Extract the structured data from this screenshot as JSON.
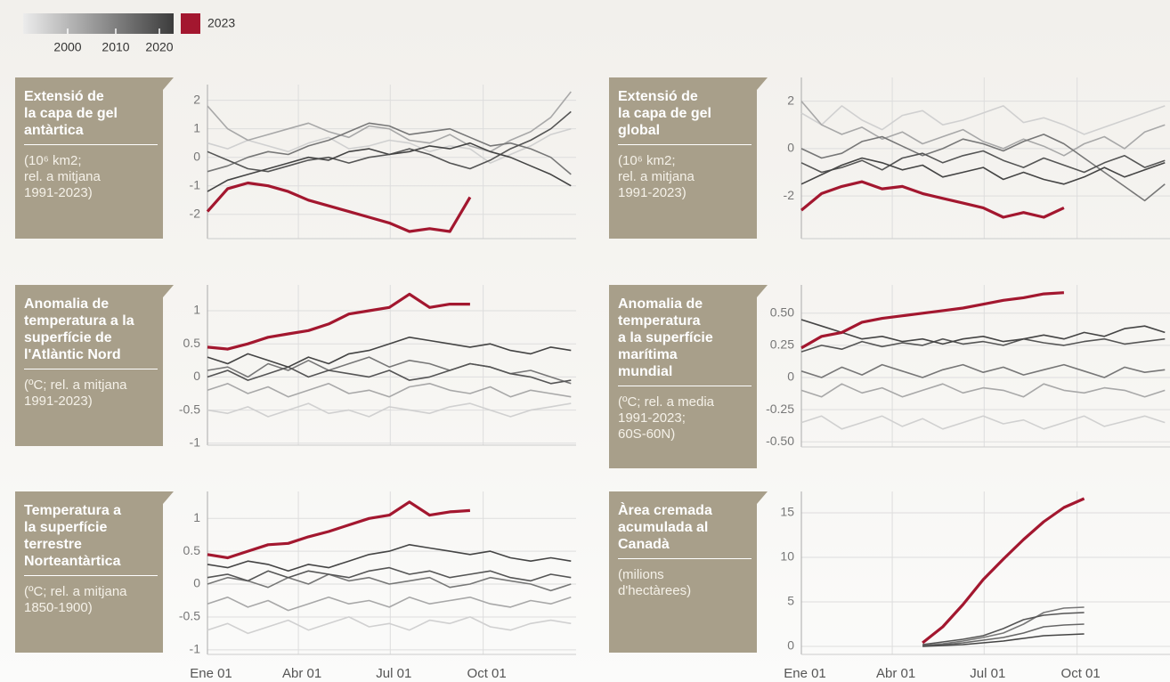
{
  "legend": {
    "ticks": [
      2000,
      2010,
      2020
    ],
    "label": "2023",
    "color": "#a3172f"
  },
  "chart_data": [
    {
      "type": "line",
      "title": "Extensió de\nla capa de gel\nantàrtica",
      "subtitle": "(10⁶ km2;\nrel. a mitjana\n1991-2023)",
      "x": [
        0,
        20,
        40,
        60,
        80,
        100,
        120,
        140,
        160,
        180,
        200,
        220,
        240,
        260,
        280,
        300,
        320,
        340,
        360
      ],
      "xlim": [
        0,
        365
      ],
      "xticks": [
        0,
        90,
        181,
        273
      ],
      "ylim": [
        -2.85,
        2.55
      ],
      "yticks": [
        2,
        1,
        0,
        -1,
        -2
      ],
      "grid": true,
      "series": [
        {
          "color": "#d0d0d0",
          "values": [
            0.5,
            0.3,
            0.6,
            0.4,
            0.2,
            0.5,
            0.7,
            0.3,
            0.4,
            0.6,
            0.5,
            0.2,
            0.4,
            0.3,
            -0.2,
            0.1,
            0.4,
            0.8,
            1.0
          ]
        },
        {
          "color": "#a8a8a8",
          "values": [
            1.8,
            1.0,
            0.6,
            0.8,
            1.0,
            1.2,
            0.9,
            0.7,
            1.1,
            1.0,
            0.6,
            0.5,
            0.8,
            0.4,
            0.2,
            0.6,
            0.9,
            1.4,
            2.3
          ]
        },
        {
          "color": "#777777",
          "values": [
            -0.5,
            -0.3,
            0.0,
            0.2,
            0.1,
            0.4,
            0.6,
            0.9,
            1.2,
            1.1,
            0.8,
            0.9,
            1.0,
            0.7,
            0.4,
            0.5,
            0.3,
            0.0,
            -0.6
          ]
        },
        {
          "color": "#555555",
          "values": [
            0.2,
            -0.1,
            -0.4,
            -0.5,
            -0.3,
            -0.1,
            0.0,
            -0.2,
            0.0,
            0.1,
            0.3,
            0.1,
            -0.2,
            -0.4,
            -0.1,
            0.3,
            0.6,
            1.0,
            1.6
          ]
        },
        {
          "color": "#444444",
          "values": [
            -1.2,
            -0.8,
            -0.6,
            -0.4,
            -0.2,
            0.0,
            -0.1,
            0.2,
            0.3,
            0.1,
            0.2,
            0.4,
            0.3,
            0.5,
            0.2,
            0.0,
            -0.3,
            -0.6,
            -1.0
          ]
        },
        {
          "color": "#a3172f",
          "values": [
            -1.9,
            -1.1,
            -0.9,
            -1.0,
            -1.2,
            -1.5,
            -1.7,
            -1.9,
            -2.1,
            -2.3,
            -2.6,
            -2.5,
            -2.6,
            -1.4,
            null,
            null,
            null,
            null,
            null
          ]
        }
      ]
    },
    {
      "type": "line",
      "title": "Extensió de\nla capa de gel\nglobal",
      "subtitle": "(10⁶ km2;\nrel. a mitjana\n1991-2023)",
      "x": [
        0,
        20,
        40,
        60,
        80,
        100,
        120,
        140,
        160,
        180,
        200,
        220,
        240,
        260,
        280,
        300,
        320,
        340,
        360
      ],
      "xlim": [
        0,
        365
      ],
      "xticks": [
        0,
        90,
        181,
        273
      ],
      "ylim": [
        -3.8,
        3.0
      ],
      "yticks": [
        2,
        0,
        -2
      ],
      "grid": true,
      "series": [
        {
          "color": "#d0d0d0",
          "values": [
            1.5,
            1.0,
            1.8,
            1.2,
            0.8,
            1.4,
            1.6,
            1.0,
            1.2,
            1.5,
            1.8,
            1.1,
            1.3,
            1.0,
            0.6,
            0.9,
            1.2,
            1.5,
            1.8
          ]
        },
        {
          "color": "#a8a8a8",
          "values": [
            2.0,
            1.0,
            0.6,
            0.9,
            0.4,
            0.7,
            0.2,
            0.5,
            0.8,
            0.3,
            0.0,
            0.4,
            0.1,
            -0.3,
            0.2,
            0.5,
            0.0,
            0.7,
            1.0
          ]
        },
        {
          "color": "#777777",
          "values": [
            0.0,
            -0.4,
            -0.2,
            0.3,
            0.5,
            0.1,
            -0.3,
            0.0,
            0.4,
            0.2,
            -0.1,
            0.3,
            0.6,
            0.2,
            -0.4,
            -1.0,
            -1.6,
            -2.2,
            -1.5
          ]
        },
        {
          "color": "#555555",
          "values": [
            -0.6,
            -1.0,
            -0.8,
            -0.5,
            -0.9,
            -0.4,
            -0.2,
            -0.6,
            -0.3,
            -0.1,
            -0.5,
            -0.8,
            -0.4,
            -0.7,
            -1.0,
            -0.6,
            -0.3,
            -0.8,
            -0.5
          ]
        },
        {
          "color": "#444444",
          "values": [
            -1.5,
            -1.1,
            -0.7,
            -0.4,
            -0.6,
            -0.9,
            -0.7,
            -1.2,
            -1.0,
            -0.8,
            -1.3,
            -1.0,
            -1.3,
            -1.5,
            -1.2,
            -0.8,
            -1.2,
            -0.9,
            -0.6
          ]
        },
        {
          "color": "#a3172f",
          "values": [
            -2.6,
            -1.9,
            -1.6,
            -1.4,
            -1.7,
            -1.6,
            -1.9,
            -2.1,
            -2.3,
            -2.5,
            -2.9,
            -2.7,
            -2.9,
            -2.5,
            null,
            null,
            null,
            null,
            null
          ]
        }
      ]
    },
    {
      "type": "line",
      "title": "Anomalia de\ntemperatura a la\nsuperfície de\nl'Atlàntic Nord",
      "subtitle": "(ºC; rel. a mitjana\n1991-2023)",
      "x": [
        0,
        20,
        40,
        60,
        80,
        100,
        120,
        140,
        160,
        180,
        200,
        220,
        240,
        260,
        280,
        300,
        320,
        340,
        360
      ],
      "xlim": [
        0,
        365
      ],
      "xticks": [
        0,
        90,
        181,
        273
      ],
      "ylim": [
        -1.03,
        1.39
      ],
      "yticks": [
        1,
        0.5,
        0,
        -0.5,
        -1
      ],
      "grid": true,
      "series": [
        {
          "color": "#d0d0d0",
          "values": [
            -0.5,
            -0.55,
            -0.45,
            -0.6,
            -0.5,
            -0.4,
            -0.55,
            -0.5,
            -0.6,
            -0.45,
            -0.5,
            -0.55,
            -0.45,
            -0.4,
            -0.5,
            -0.6,
            -0.5,
            -0.45,
            -0.4
          ]
        },
        {
          "color": "#a8a8a8",
          "values": [
            -0.2,
            -0.1,
            -0.25,
            -0.15,
            -0.3,
            -0.2,
            -0.1,
            -0.25,
            -0.2,
            -0.3,
            -0.15,
            -0.1,
            -0.2,
            -0.25,
            -0.15,
            -0.3,
            -0.2,
            -0.25,
            -0.3
          ]
        },
        {
          "color": "#777777",
          "values": [
            0.1,
            0.15,
            0.0,
            0.2,
            0.1,
            0.25,
            0.1,
            0.2,
            0.3,
            0.15,
            0.25,
            0.2,
            0.1,
            0.2,
            0.15,
            0.05,
            0.1,
            0.0,
            -0.1
          ]
        },
        {
          "color": "#555555",
          "values": [
            0.0,
            0.1,
            -0.05,
            0.05,
            0.15,
            0.0,
            0.1,
            0.05,
            0.0,
            0.1,
            -0.05,
            0.0,
            0.1,
            0.2,
            0.15,
            0.05,
            0.0,
            -0.1,
            -0.05
          ]
        },
        {
          "color": "#444444",
          "values": [
            0.3,
            0.2,
            0.35,
            0.25,
            0.15,
            0.3,
            0.2,
            0.35,
            0.4,
            0.5,
            0.6,
            0.55,
            0.5,
            0.45,
            0.5,
            0.4,
            0.35,
            0.45,
            0.4
          ]
        },
        {
          "color": "#a3172f",
          "values": [
            0.45,
            0.42,
            0.5,
            0.6,
            0.65,
            0.7,
            0.8,
            0.95,
            1.0,
            1.05,
            1.25,
            1.05,
            1.1,
            1.1,
            null,
            null,
            null,
            null,
            null
          ]
        }
      ]
    },
    {
      "type": "line",
      "title": "Anomalia de\ntemperatura\na la superfície\nmarítima\nmundial",
      "subtitle": "(ºC; rel. a media\n1991-2023;\n60S-60N)",
      "x": [
        0,
        20,
        40,
        60,
        80,
        100,
        120,
        140,
        160,
        180,
        200,
        220,
        240,
        260,
        280,
        300,
        320,
        340,
        360
      ],
      "xlim": [
        0,
        365
      ],
      "xticks": [
        0,
        90,
        181,
        273
      ],
      "ylim": [
        -0.54,
        0.72
      ],
      "yticks": [
        {
          "value": 0.5,
          "label": "0.50"
        },
        {
          "value": 0.25,
          "label": "0.25"
        },
        0,
        {
          "value": -0.25,
          "label": "-0.25"
        },
        {
          "value": -0.5,
          "label": "-0.50"
        }
      ],
      "grid": true,
      "series": [
        {
          "color": "#d0d0d0",
          "values": [
            -0.35,
            -0.3,
            -0.4,
            -0.35,
            -0.3,
            -0.38,
            -0.32,
            -0.4,
            -0.35,
            -0.3,
            -0.36,
            -0.33,
            -0.4,
            -0.35,
            -0.3,
            -0.38,
            -0.34,
            -0.3,
            -0.35
          ]
        },
        {
          "color": "#a8a8a8",
          "values": [
            -0.1,
            -0.15,
            -0.05,
            -0.12,
            -0.08,
            -0.15,
            -0.1,
            -0.05,
            -0.12,
            -0.08,
            -0.1,
            -0.15,
            -0.05,
            -0.1,
            -0.12,
            -0.08,
            -0.1,
            -0.15,
            -0.1
          ]
        },
        {
          "color": "#777777",
          "values": [
            0.05,
            0.0,
            0.08,
            0.02,
            0.1,
            0.05,
            0.0,
            0.06,
            0.1,
            0.04,
            0.08,
            0.02,
            0.06,
            0.1,
            0.05,
            0.0,
            0.08,
            0.04,
            0.06
          ]
        },
        {
          "color": "#555555",
          "values": [
            0.2,
            0.25,
            0.22,
            0.28,
            0.24,
            0.27,
            0.25,
            0.3,
            0.26,
            0.28,
            0.25,
            0.3,
            0.27,
            0.25,
            0.28,
            0.3,
            0.26,
            0.28,
            0.3
          ]
        },
        {
          "color": "#444444",
          "values": [
            0.45,
            0.4,
            0.35,
            0.3,
            0.32,
            0.28,
            0.3,
            0.26,
            0.3,
            0.32,
            0.28,
            0.3,
            0.33,
            0.3,
            0.35,
            0.32,
            0.38,
            0.4,
            0.35
          ]
        },
        {
          "color": "#a3172f",
          "values": [
            0.23,
            0.32,
            0.35,
            0.43,
            0.46,
            0.48,
            0.5,
            0.52,
            0.54,
            0.57,
            0.6,
            0.62,
            0.65,
            0.66,
            null,
            null,
            null,
            null,
            null
          ]
        }
      ]
    },
    {
      "type": "line",
      "title": "Temperatura a\nla superfície\nterrestre\nNorteantàrtica",
      "subtitle": "(ºC; rel. a mitjana\n1850-1900)",
      "x": [
        0,
        20,
        40,
        60,
        80,
        100,
        120,
        140,
        160,
        180,
        200,
        220,
        240,
        260,
        280,
        300,
        320,
        340,
        360
      ],
      "xlim": [
        0,
        365
      ],
      "xticks": [
        {
          "value": 0,
          "label": "Ene 01"
        },
        {
          "value": 90,
          "label": "Abr 01"
        },
        {
          "value": 181,
          "label": "Jul 01"
        },
        {
          "value": 273,
          "label": "Oct 01"
        }
      ],
      "ylim": [
        -1.07,
        1.41
      ],
      "yticks": [
        1,
        0.5,
        0,
        -0.5,
        -1
      ],
      "grid": true,
      "series": [
        {
          "color": "#d0d0d0",
          "values": [
            -0.7,
            -0.6,
            -0.75,
            -0.65,
            -0.55,
            -0.7,
            -0.6,
            -0.5,
            -0.65,
            -0.6,
            -0.7,
            -0.55,
            -0.6,
            -0.5,
            -0.65,
            -0.7,
            -0.6,
            -0.55,
            -0.6
          ]
        },
        {
          "color": "#a8a8a8",
          "values": [
            -0.3,
            -0.2,
            -0.35,
            -0.25,
            -0.4,
            -0.3,
            -0.2,
            -0.3,
            -0.25,
            -0.35,
            -0.2,
            -0.3,
            -0.25,
            -0.2,
            -0.3,
            -0.35,
            -0.25,
            -0.3,
            -0.2
          ]
        },
        {
          "color": "#777777",
          "values": [
            0.0,
            0.1,
            0.05,
            -0.05,
            0.1,
            0.0,
            0.15,
            0.05,
            0.1,
            0.0,
            0.05,
            0.1,
            -0.05,
            0.0,
            0.1,
            0.05,
            0.0,
            -0.1,
            0.0
          ]
        },
        {
          "color": "#555555",
          "values": [
            0.1,
            0.15,
            0.05,
            0.2,
            0.1,
            0.2,
            0.15,
            0.1,
            0.2,
            0.25,
            0.15,
            0.2,
            0.1,
            0.15,
            0.2,
            0.1,
            0.05,
            0.15,
            0.1
          ]
        },
        {
          "color": "#444444",
          "values": [
            0.3,
            0.25,
            0.35,
            0.3,
            0.2,
            0.3,
            0.25,
            0.35,
            0.45,
            0.5,
            0.6,
            0.55,
            0.5,
            0.45,
            0.5,
            0.4,
            0.35,
            0.4,
            0.35
          ]
        },
        {
          "color": "#a3172f",
          "values": [
            0.45,
            0.4,
            0.5,
            0.6,
            0.62,
            0.72,
            0.8,
            0.9,
            1.0,
            1.05,
            1.25,
            1.05,
            1.1,
            1.12,
            null,
            null,
            null,
            null,
            null
          ]
        }
      ]
    },
    {
      "type": "line",
      "title": "Àrea cremada\nacumulada al\nCanadà",
      "subtitle": "(milions\nd'hectàrees)",
      "x": [
        0,
        20,
        40,
        60,
        80,
        100,
        120,
        140,
        160,
        180,
        200,
        220,
        240,
        260,
        280,
        300,
        320,
        340,
        360
      ],
      "xlim": [
        0,
        365
      ],
      "xticks": [
        {
          "value": 0,
          "label": "Ene 01"
        },
        {
          "value": 90,
          "label": "Abr 01"
        },
        {
          "value": 181,
          "label": "Jul 01"
        },
        {
          "value": 273,
          "label": "Oct 01"
        }
      ],
      "ylim": [
        -0.9,
        17.4
      ],
      "yticks": [
        15,
        10,
        5,
        0
      ],
      "grid": true,
      "series": [
        {
          "color": "#777777",
          "values": [
            null,
            null,
            null,
            null,
            null,
            null,
            0.1,
            0.3,
            0.6,
            1.0,
            1.5,
            2.5,
            3.8,
            4.3,
            4.4,
            null,
            null,
            null,
            null
          ]
        },
        {
          "color": "#555555",
          "values": [
            null,
            null,
            null,
            null,
            null,
            null,
            0.2,
            0.5,
            0.8,
            1.2,
            2.0,
            3.0,
            3.5,
            3.7,
            3.8,
            null,
            null,
            null,
            null
          ]
        },
        {
          "color": "#666666",
          "values": [
            null,
            null,
            null,
            null,
            null,
            null,
            0.1,
            0.2,
            0.4,
            0.7,
            1.0,
            1.5,
            2.2,
            2.4,
            2.5,
            null,
            null,
            null,
            null
          ]
        },
        {
          "color": "#444444",
          "values": [
            null,
            null,
            null,
            null,
            null,
            null,
            0.0,
            0.1,
            0.2,
            0.4,
            0.6,
            0.9,
            1.2,
            1.3,
            1.4,
            null,
            null,
            null,
            null
          ]
        },
        {
          "color": "#a3172f",
          "values": [
            null,
            null,
            null,
            null,
            null,
            null,
            0.4,
            2.2,
            4.7,
            7.5,
            9.8,
            12,
            14,
            15.6,
            16.6,
            null,
            null,
            null,
            null
          ]
        }
      ]
    }
  ]
}
